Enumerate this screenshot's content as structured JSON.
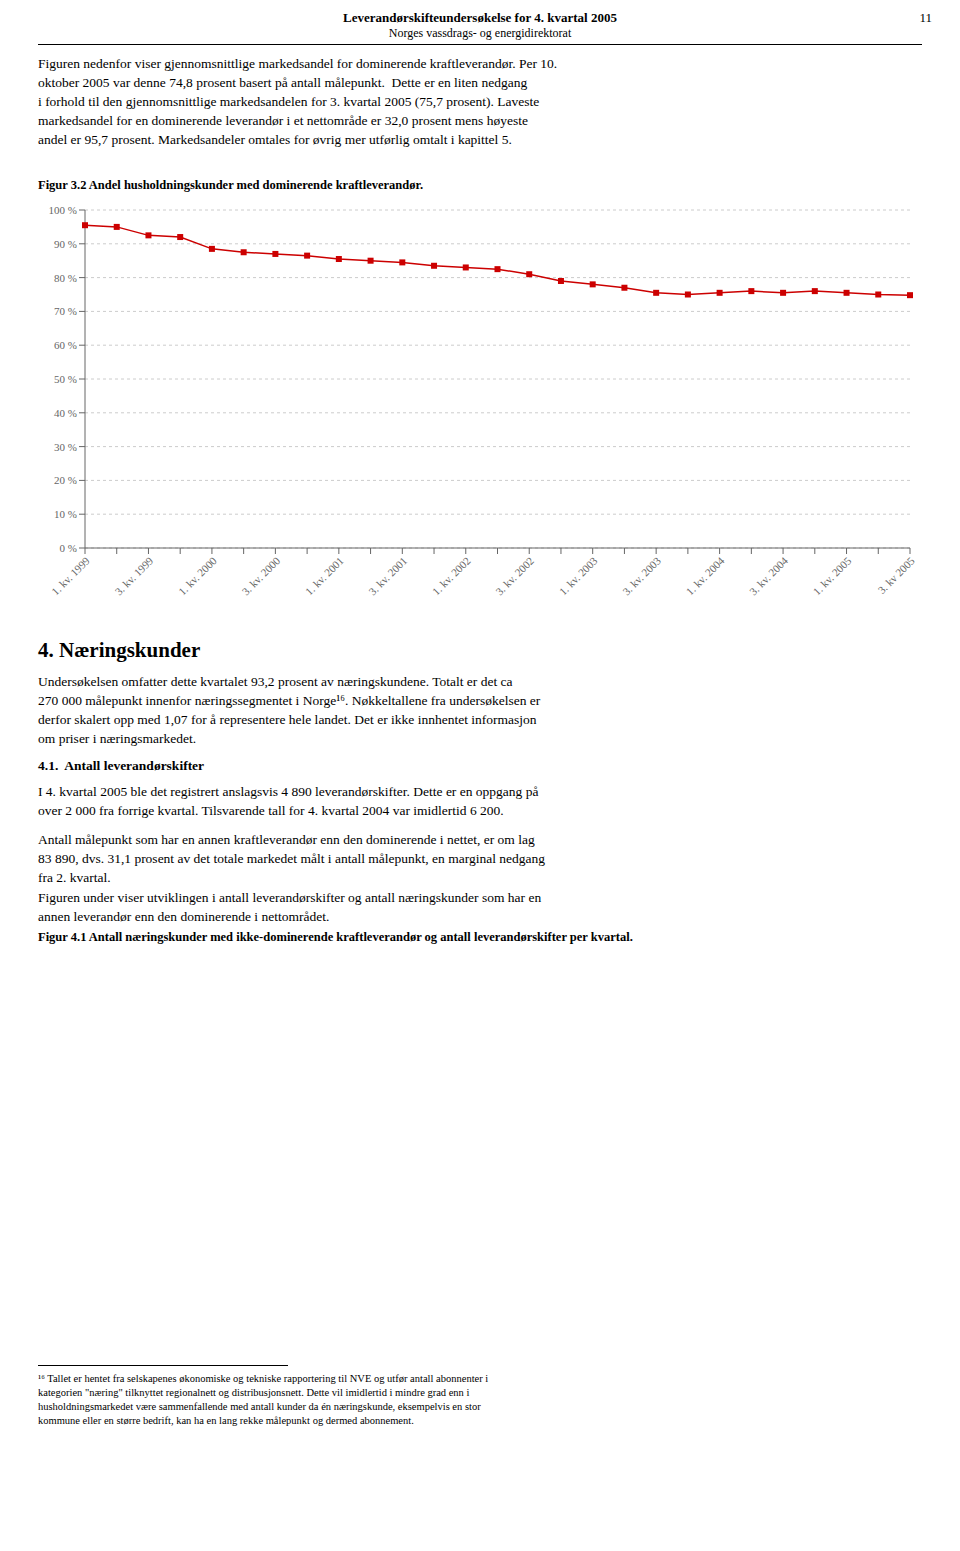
{
  "chart_data": {
    "type": "line",
    "title": "Figur 3.2 Andel husholdningskunder med dominerende kraftleverandør.",
    "categories": [
      "1. kv. 1999",
      null,
      "3. kv. 1999",
      null,
      "1. kv. 2000",
      null,
      "3. kv. 2000",
      null,
      "1. kv. 2001",
      null,
      "3. kv. 2001",
      null,
      "1. kv. 2002",
      null,
      "3. kv. 2002",
      null,
      "1. kv. 2003",
      null,
      "3. kv. 2003",
      null,
      "1. kv. 2004",
      null,
      "3. kv. 2004",
      null,
      "1. kv. 2005",
      null,
      "3. kv 2005"
    ],
    "values": [
      95.5,
      95.0,
      92.5,
      92.0,
      88.5,
      87.5,
      87.0,
      86.5,
      85.5,
      85.0,
      84.5,
      83.5,
      83.0,
      82.5,
      81.0,
      79.0,
      78.0,
      77.0,
      75.5,
      75.0,
      75.5,
      76.0,
      75.5,
      76.0,
      75.5,
      75.0,
      74.8
    ],
    "color": "#CC0000",
    "marker": "square",
    "ylim": [
      0,
      100
    ],
    "yticks": [
      {
        "value": 0,
        "label": "0 %"
      },
      {
        "value": 10,
        "label": "10 %"
      },
      {
        "value": 20,
        "label": "20 %"
      },
      {
        "value": 30,
        "label": "30 %"
      },
      {
        "value": 40,
        "label": "40 %"
      },
      {
        "value": 50,
        "label": "50 %"
      },
      {
        "value": 60,
        "label": "60 %"
      },
      {
        "value": 70,
        "label": "70 %"
      },
      {
        "value": 80,
        "label": "80 %"
      },
      {
        "value": 90,
        "label": "90 %"
      },
      {
        "value": 100,
        "label": "100 %"
      }
    ],
    "grid": true
  },
  "page": {
    "header_title": "Leverandørskifteundersøkelse for 4. kvartal 2005",
    "header_subtitle": "Norges vassdrags- og energidirektorat",
    "page_number": "11",
    "paragraph1": [
      "Figuren nedenfor viser gjennomsnittlige markedsandel for dominerende kraftleverandør. Per 10.",
      "oktober 2005 var denne 74,8 prosent basert på antall målepunkt.  Dette er en liten nedgang",
      "i forhold til den gjennomsnittlige markedsandelen for 3. kvartal 2005 (75,7 prosent). Laveste",
      "markedsandel for en dominerende leverandør i et nettområde er 32,0 prosent mens høyeste",
      "andel er 95,7 prosent. Markedsandeler omtales for øvrig mer utførlig omtalt i kapittel 5."
    ],
    "section_title": "4. Næringskunder",
    "section_text": [
      "Undersøkelsen omfatter dette kvartalet 93,2 prosent av næringskundene. Totalt er det ca",
      "270 000 målepunkt innenfor næringssegmentet i Norge¹⁶. Nøkkeltallene fra undersøkelsen er",
      "derfor skalert opp med 1,07 for å representere hele landet. Det er ikke innhentet informasjon",
      "om priser i næringsmarkedet."
    ],
    "subsection_title": "4.1.  Antall leverandørskifter",
    "subsection_paragraphs": [
      [
        "I 4. kvartal 2005 ble det registrert anslagsvis 4 890 leverandørskifter. Dette er en oppgang på",
        "over 2 000 fra forrige kvartal. Tilsvarende tall for 4. kvartal 2004 var imidlertid 6 200."
      ],
      [
        "Antall målepunkt som har en annen kraftleverandør enn den dominerende i nettet, er om lag",
        "83 890, dvs. 31,1 prosent av det totale markedet målt i antall målepunkt, en marginal nedgang",
        "fra 2. kvartal."
      ],
      [
        "Figuren under viser utviklingen i antall leverandørskifter og antall næringskunder som har en",
        "annen leverandør enn den dominerende i nettområdet."
      ]
    ],
    "figure41_caption": "Figur 4.1 Antall næringskunder med ikke-dominerende kraftleverandør og antall leverandørskifter per kvartal.",
    "footnote": [
      "¹⁶ Tallet er hentet fra selskapenes økonomiske og tekniske rapportering til NVE og utfør antall abonnenter i",
      "kategorien \"næring\" tilknyttet regionalnett og distribusjonsnett. Dette vil imidlertid i mindre grad enn i",
      "husholdningsmarkedet være sammenfallende med antall kunder da én næringskunde, eksempelvis en stor",
      "kommune eller en større bedrift, kan ha en lang rekke målepunkt og dermed abonnement."
    ]
  }
}
